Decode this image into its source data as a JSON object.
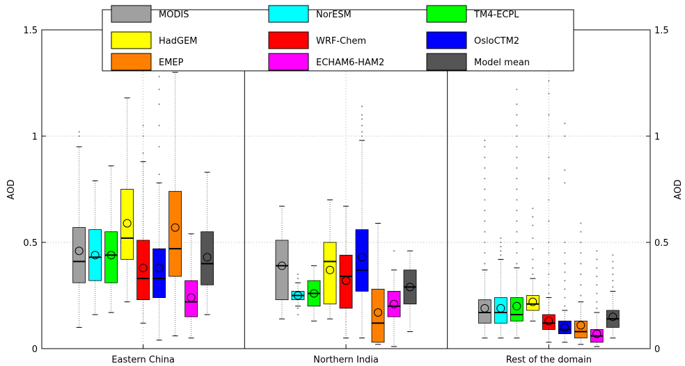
{
  "chart_data": {
    "type": "box",
    "ylabel_left": "AOD",
    "ylabel_right": "AOD",
    "ylim": [
      0,
      1.5
    ],
    "yticks": [
      "0",
      "0.5",
      "1",
      "1.5"
    ],
    "grid": true,
    "legend_placement": "top",
    "categories": [
      "Eastern China",
      "Northern India",
      "Rest of the domain"
    ],
    "series": [
      {
        "name": "MODIS",
        "color": "#a0a0a0"
      },
      {
        "name": "NorESM",
        "color": "#00ffff"
      },
      {
        "name": "TM4-ECPL",
        "color": "#00ff00"
      },
      {
        "name": "HadGEM",
        "color": "#ffff00"
      },
      {
        "name": "WRF-Chem",
        "color": "#ff0000"
      },
      {
        "name": "OsloCTM2",
        "color": "#0000ff"
      },
      {
        "name": "EMEP",
        "color": "#ff8000"
      },
      {
        "name": "ECHAM6-HAM2",
        "color": "#ff00ff"
      },
      {
        "name": "Model mean",
        "color": "#555555"
      }
    ],
    "groups": [
      {
        "name": "Eastern China",
        "boxes": [
          {
            "min": 0.1,
            "q1": 0.31,
            "median": 0.41,
            "q3": 0.57,
            "max": 0.95,
            "mean": 0.46,
            "outliers": [
              1.0,
              1.02
            ]
          },
          {
            "min": 0.16,
            "q1": 0.32,
            "median": 0.43,
            "q3": 0.56,
            "max": 0.79,
            "mean": 0.44,
            "outliers": []
          },
          {
            "min": 0.17,
            "q1": 0.31,
            "median": 0.44,
            "q3": 0.55,
            "max": 0.86,
            "mean": 0.44,
            "outliers": []
          },
          {
            "min": 0.22,
            "q1": 0.42,
            "median": 0.52,
            "q3": 0.75,
            "max": 1.18,
            "mean": 0.59,
            "outliers": []
          },
          {
            "min": 0.12,
            "q1": 0.23,
            "median": 0.33,
            "q3": 0.51,
            "max": 0.88,
            "mean": 0.38,
            "outliers": [
              0.92,
              1.0,
              1.05
            ]
          },
          {
            "min": 0.04,
            "q1": 0.24,
            "median": 0.33,
            "q3": 0.47,
            "max": 0.78,
            "mean": 0.38,
            "outliers": [
              0.82,
              0.95,
              1.05,
              1.15,
              1.22,
              1.28
            ]
          },
          {
            "min": 0.06,
            "q1": 0.34,
            "median": 0.47,
            "q3": 0.74,
            "max": 1.3,
            "mean": 0.57,
            "outliers": []
          },
          {
            "min": 0.05,
            "q1": 0.15,
            "median": 0.22,
            "q3": 0.32,
            "max": 0.54,
            "mean": 0.24,
            "outliers": []
          },
          {
            "min": 0.16,
            "q1": 0.3,
            "median": 0.4,
            "q3": 0.55,
            "max": 0.83,
            "mean": 0.43,
            "outliers": []
          }
        ]
      },
      {
        "name": "Northern India",
        "boxes": [
          {
            "min": 0.14,
            "q1": 0.23,
            "median": 0.39,
            "q3": 0.51,
            "max": 0.67,
            "mean": 0.39,
            "outliers": []
          },
          {
            "min": 0.2,
            "q1": 0.23,
            "median": 0.25,
            "q3": 0.27,
            "max": 0.31,
            "mean": 0.25,
            "outliers": [
              0.16,
              0.19,
              0.33,
              0.35
            ]
          },
          {
            "min": 0.13,
            "q1": 0.2,
            "median": 0.26,
            "q3": 0.32,
            "max": 0.39,
            "mean": 0.26,
            "outliers": []
          },
          {
            "min": 0.14,
            "q1": 0.21,
            "median": 0.41,
            "q3": 0.5,
            "max": 0.7,
            "mean": 0.37,
            "outliers": []
          },
          {
            "min": 0.05,
            "q1": 0.19,
            "median": 0.34,
            "q3": 0.44,
            "max": 0.67,
            "mean": 0.32,
            "outliers": []
          },
          {
            "min": 0.05,
            "q1": 0.27,
            "median": 0.37,
            "q3": 0.56,
            "max": 0.98,
            "mean": 0.43,
            "outliers": [
              1.0,
              1.02,
              1.05,
              1.08,
              1.1,
              1.14
            ]
          },
          {
            "min": 0.02,
            "q1": 0.03,
            "median": 0.12,
            "q3": 0.28,
            "max": 0.59,
            "mean": 0.17,
            "outliers": []
          },
          {
            "min": 0.01,
            "q1": 0.15,
            "median": 0.2,
            "q3": 0.27,
            "max": 0.37,
            "mean": 0.21,
            "outliers": [
              0.46
            ]
          },
          {
            "min": 0.08,
            "q1": 0.21,
            "median": 0.29,
            "q3": 0.37,
            "max": 0.46,
            "mean": 0.29,
            "outliers": []
          }
        ]
      },
      {
        "name": "Rest of the domain",
        "boxes": [
          {
            "min": 0.05,
            "q1": 0.12,
            "median": 0.17,
            "q3": 0.23,
            "max": 0.37,
            "mean": 0.19,
            "outliers": [
              0.4,
              0.45,
              0.5,
              0.55,
              0.6,
              0.65,
              0.7,
              0.75,
              0.8,
              0.85,
              0.9,
              0.95,
              0.98
            ]
          },
          {
            "min": 0.05,
            "q1": 0.12,
            "median": 0.17,
            "q3": 0.24,
            "max": 0.42,
            "mean": 0.19,
            "outliers": [
              0.44,
              0.46,
              0.48,
              0.5,
              0.52
            ]
          },
          {
            "min": 0.05,
            "q1": 0.13,
            "median": 0.16,
            "q3": 0.24,
            "max": 0.38,
            "mean": 0.2,
            "outliers": [
              0.4,
              0.45,
              0.5,
              0.55,
              0.6,
              0.65,
              0.7,
              0.75,
              0.8,
              0.85,
              0.9,
              0.95,
              1.0,
              1.05,
              1.1,
              1.15,
              1.22
            ]
          },
          {
            "min": 0.13,
            "q1": 0.18,
            "median": 0.21,
            "q3": 0.25,
            "max": 0.33,
            "mean": 0.22,
            "outliers": [
              0.35,
              0.38,
              0.42,
              0.47,
              0.52,
              0.58,
              0.62,
              0.66
            ]
          },
          {
            "min": 0.03,
            "q1": 0.09,
            "median": 0.12,
            "q3": 0.16,
            "max": 0.24,
            "mean": 0.13,
            "outliers": [
              0.26,
              0.3,
              0.35,
              0.4,
              0.45,
              0.5,
              0.6,
              0.7,
              0.8,
              0.9,
              1.0,
              1.1,
              1.2,
              1.26
            ]
          },
          {
            "min": 0.03,
            "q1": 0.07,
            "median": 0.09,
            "q3": 0.13,
            "max": 0.18,
            "mean": 0.1,
            "outliers": [
              0.2,
              0.24,
              0.28,
              0.32,
              0.36,
              0.4,
              0.45,
              0.5,
              0.78,
              0.84,
              1.0,
              1.06
            ]
          },
          {
            "min": 0.02,
            "q1": 0.05,
            "median": 0.08,
            "q3": 0.13,
            "max": 0.22,
            "mean": 0.11,
            "outliers": [
              0.25,
              0.3,
              0.35,
              0.4,
              0.45,
              0.5,
              0.55,
              0.59
            ]
          },
          {
            "min": 0.01,
            "q1": 0.03,
            "median": 0.06,
            "q3": 0.09,
            "max": 0.17,
            "mean": 0.07,
            "outliers": [
              0.19,
              0.22,
              0.26,
              0.3,
              0.34,
              0.38,
              0.42,
              0.46
            ]
          },
          {
            "min": 0.05,
            "q1": 0.1,
            "median": 0.14,
            "q3": 0.18,
            "max": 0.27,
            "mean": 0.15,
            "outliers": [
              0.29,
              0.32,
              0.35,
              0.38,
              0.41,
              0.44
            ]
          }
        ]
      }
    ]
  }
}
